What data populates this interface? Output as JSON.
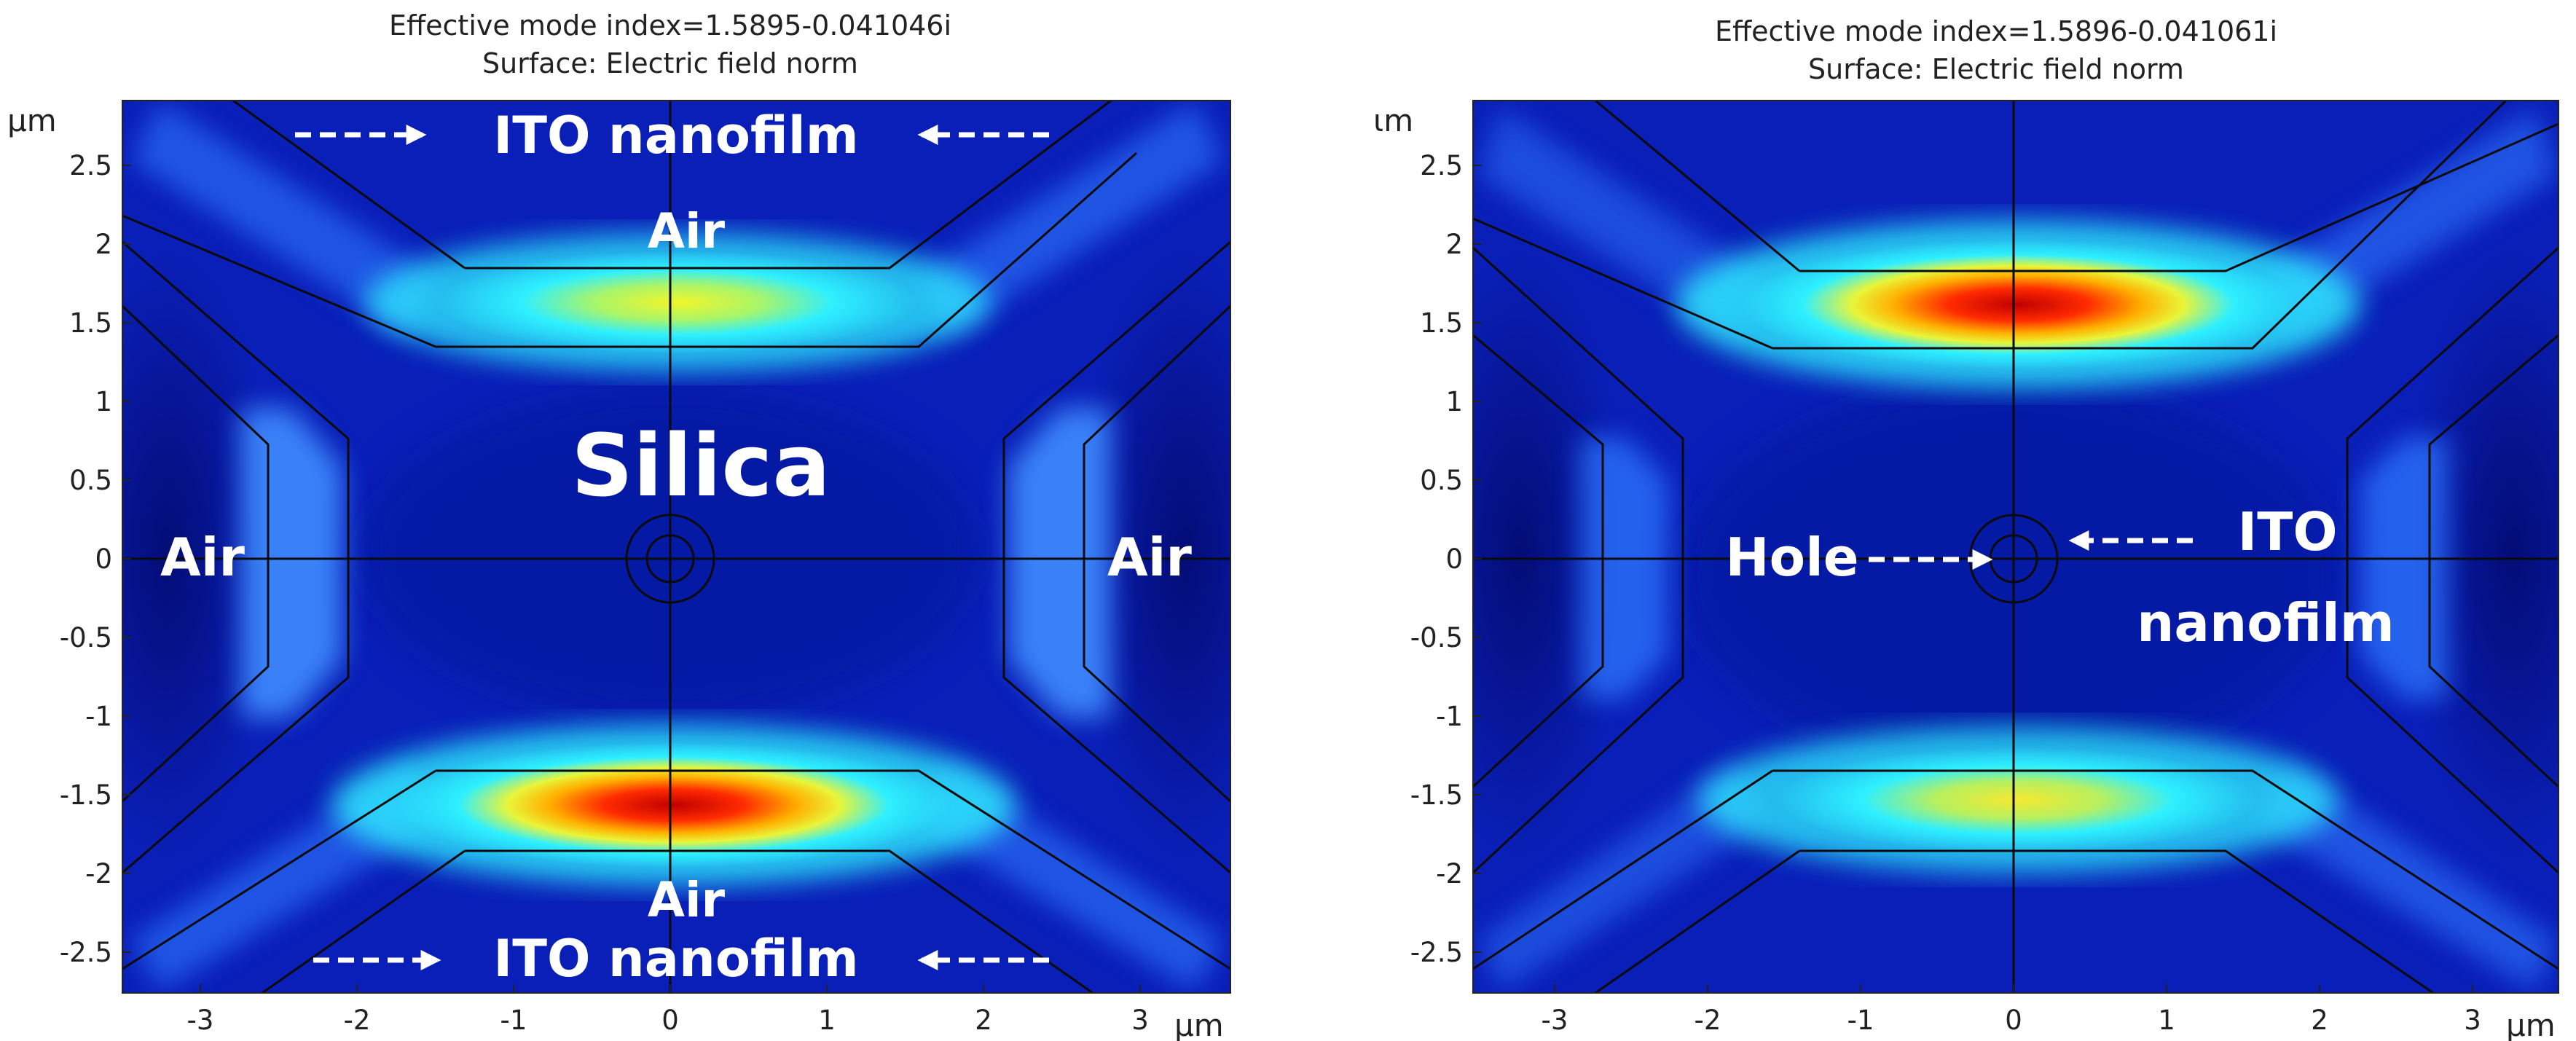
{
  "panels": [
    {
      "title_line1": "Effective mode index=1.5895-0.041046i",
      "title_line2": "Surface: Electric field norm",
      "y_unit": "μm",
      "x_unit": "μm",
      "x_ticks": [
        "-3",
        "-2",
        "-1",
        "0",
        "1",
        "2",
        "3"
      ],
      "y_ticks": [
        "2.5",
        "2",
        "1.5",
        "1",
        "0.5",
        "0",
        "-0.5",
        "-1",
        "-1.5",
        "-2",
        "-2.5"
      ],
      "labels": {
        "ito_top": "ITO nanofilm",
        "air_top": "Air",
        "silica": "Silica",
        "air_left": "Air",
        "air_right": "Air",
        "air_bottom": "Air",
        "ito_bottom": "ITO nanofilm"
      }
    },
    {
      "title_line1": "Effective mode index=1.5896-0.041061i",
      "title_line2": "Surface: Electric field norm",
      "y_unit": "ιm",
      "x_unit": "μm",
      "x_ticks": [
        "-3",
        "-2",
        "-1",
        "0",
        "1",
        "2",
        "3"
      ],
      "y_ticks": [
        "2.5",
        "2",
        "1.5",
        "1",
        "0.5",
        "0",
        "-0.5",
        "-1",
        "-1.5",
        "-2",
        "-2.5"
      ],
      "labels": {
        "hole": "Hole",
        "ito_line1": "ITO",
        "ito_line2": "nanofilm"
      }
    }
  ],
  "colors": {
    "field_background": "#0a1fb8",
    "field_dark": "#030a6e",
    "field_cyan": "#2ef0ff",
    "field_yellow": "#f2f52a",
    "field_red": "#d40000"
  }
}
